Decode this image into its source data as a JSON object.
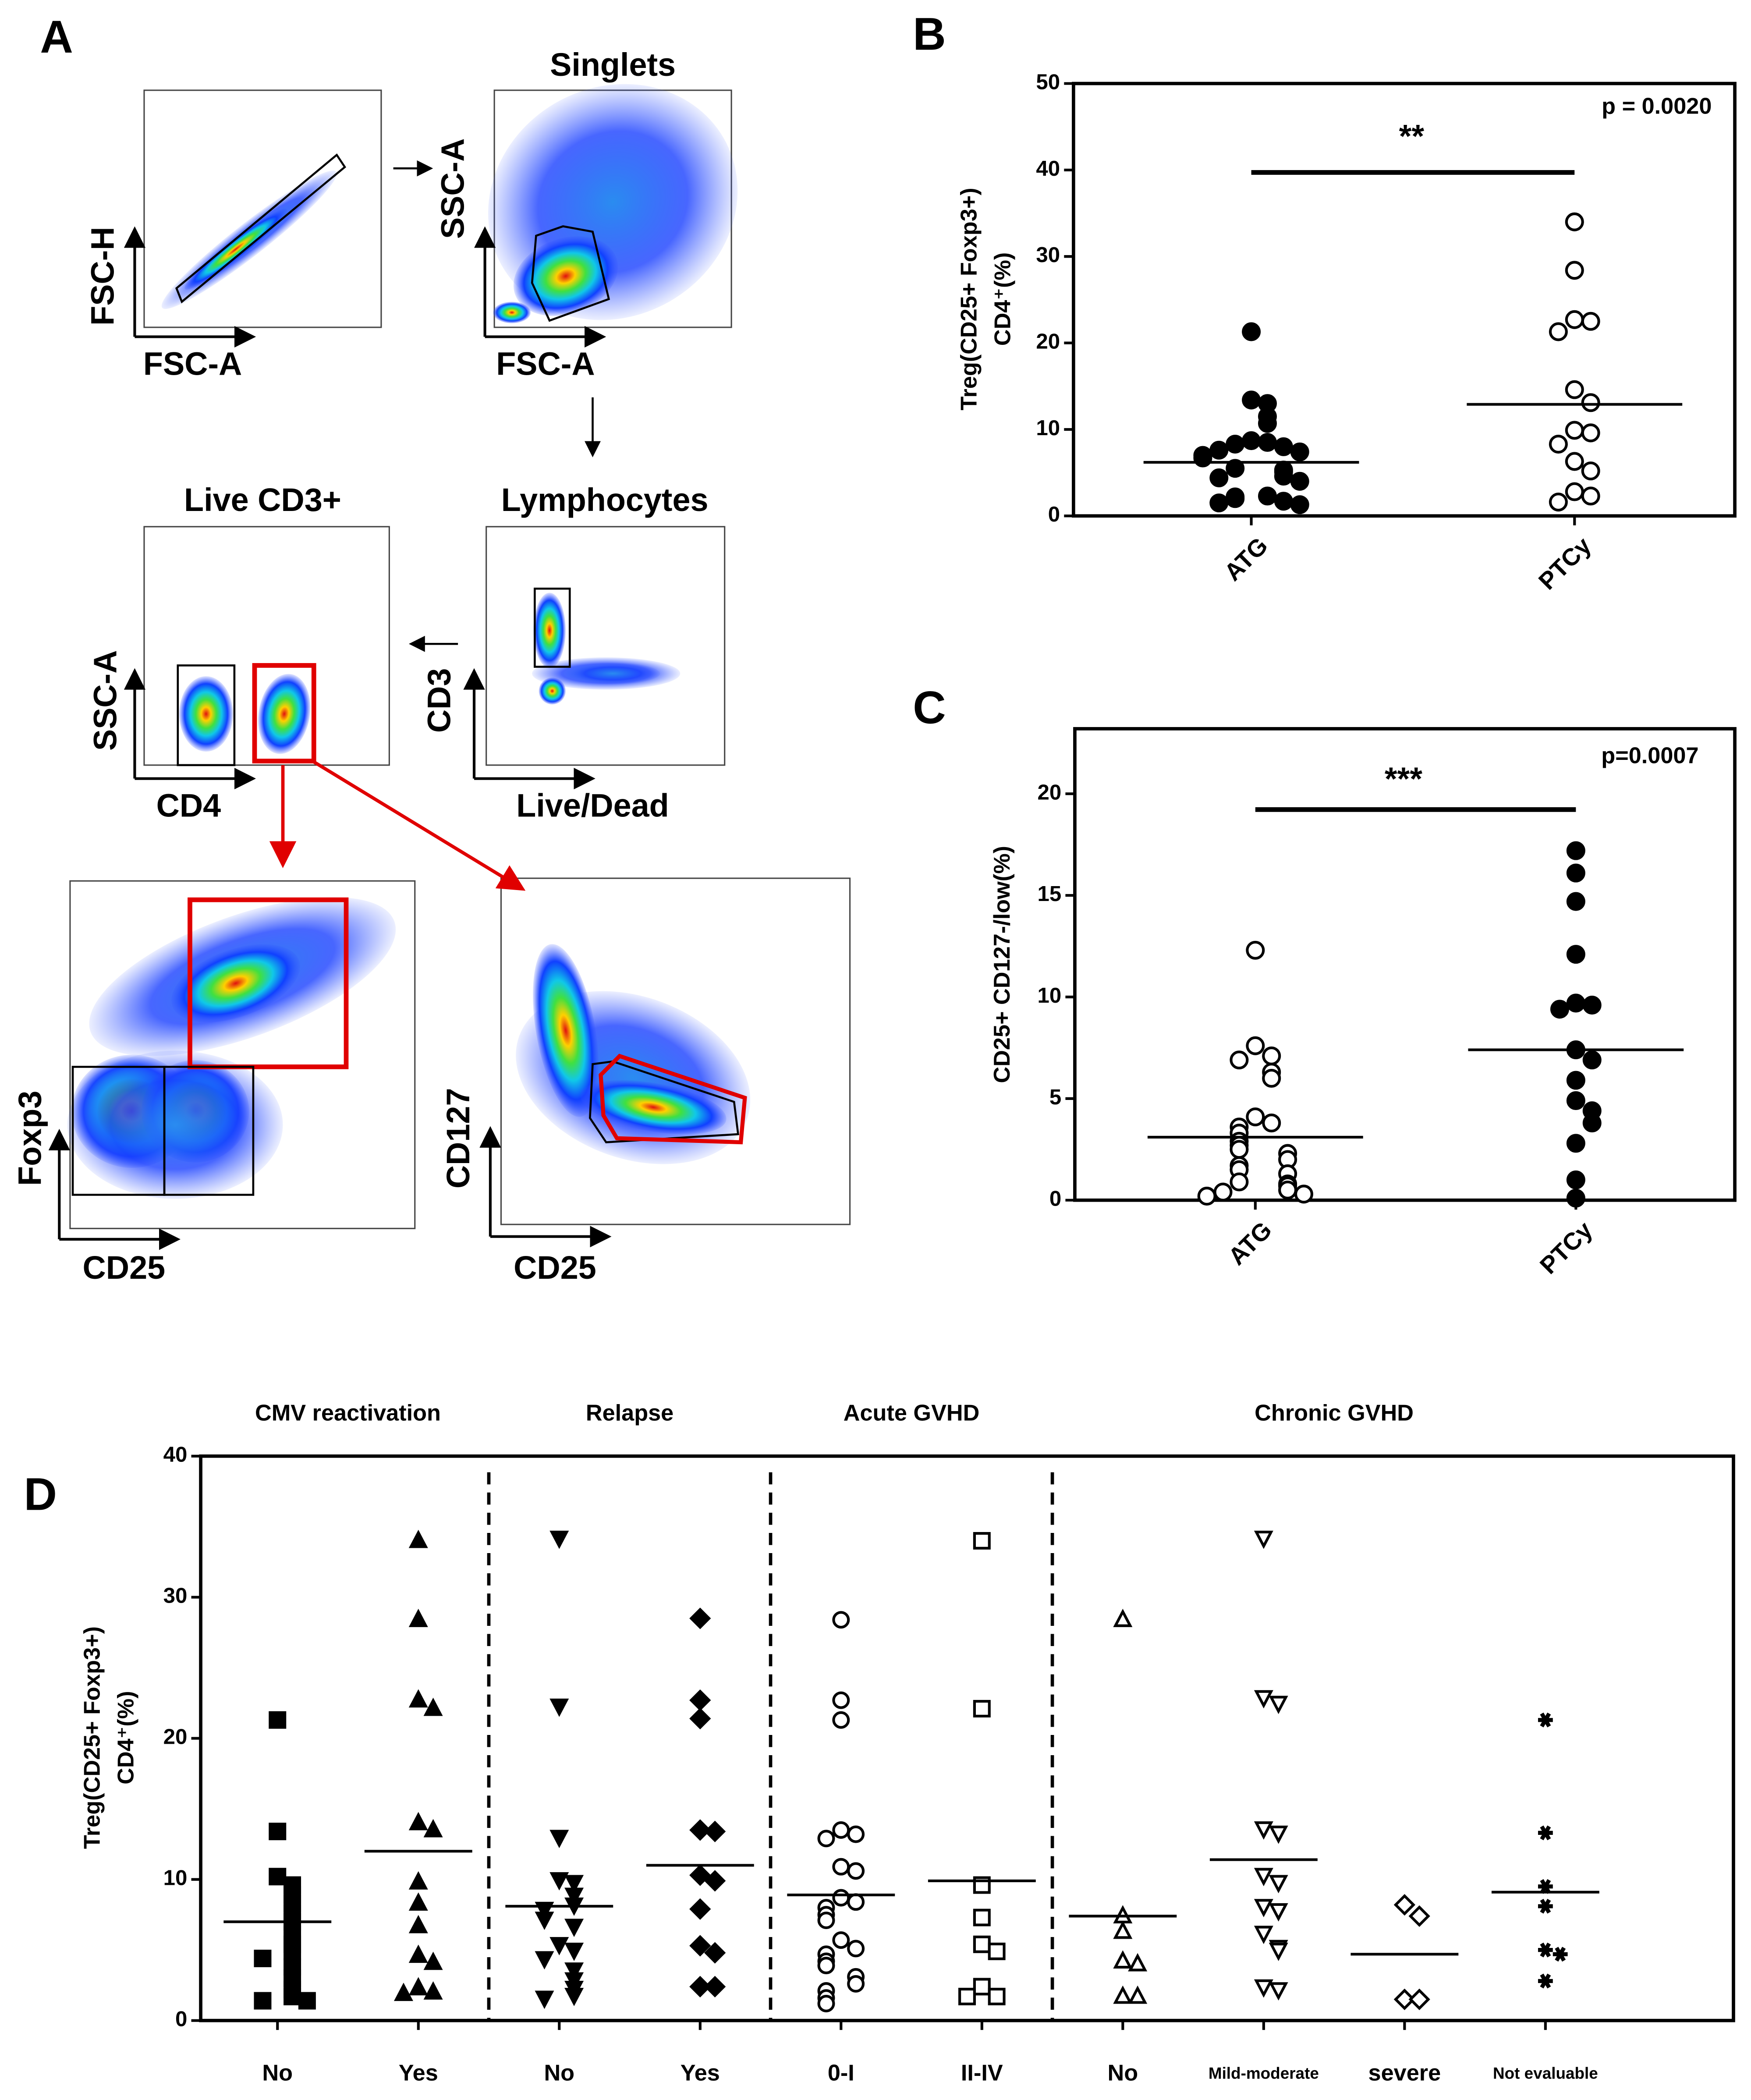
{
  "panel_a": {
    "label": "A",
    "plots": [
      {
        "x_axis": "FSC-A",
        "y_axis": "FSC-H"
      },
      {
        "title": "Singlets",
        "x_axis": "FSC-A",
        "y_axis": "SSC-A"
      },
      {
        "title": "Lymphocytes",
        "x_axis": "Live/Dead",
        "y_axis": "CD3"
      },
      {
        "title": "Live CD3+",
        "x_axis": "CD4",
        "y_axis": "SSC-A"
      },
      {
        "x_axis": "CD25",
        "y_axis": "Foxp3"
      },
      {
        "x_axis": "CD25",
        "y_axis": "CD127"
      }
    ]
  },
  "chart_data": [
    {
      "type": "dot",
      "label": "B",
      "ylabel": [
        "Treg(CD25+ Foxp3+)",
        "CD4⁺(%)"
      ],
      "categories": [
        "ATG",
        "PTCy"
      ],
      "values": [
        [
          21.3,
          13.4,
          13.0,
          11.5,
          10.7,
          8.7,
          8.5,
          8.3,
          8.0,
          7.6,
          7.4,
          7.0,
          6.7,
          5.5,
          5.3,
          5.1,
          4.6,
          4.4,
          4.0,
          2.3,
          2.2,
          2.0,
          1.7,
          1.5,
          1.3
        ],
        [
          34.0,
          28.4,
          22.7,
          22.5,
          21.3,
          14.6,
          13.1,
          9.9,
          9.6,
          8.3,
          6.3,
          5.2,
          2.8,
          2.3,
          1.6
        ]
      ],
      "means": [
        6.2,
        12.9
      ],
      "markers": [
        "circle-filled",
        "circle-open"
      ],
      "ylim": [
        0,
        50
      ],
      "yticks": [
        0,
        10,
        20,
        30,
        40,
        50
      ],
      "annotation": "**",
      "p_value": "p = 0.0020"
    },
    {
      "type": "dot",
      "label": "C",
      "ylabel": [
        "CD25+ CD127-/low(%)"
      ],
      "categories": [
        "ATG",
        "PTCy"
      ],
      "values": [
        [
          12.3,
          7.6,
          7.1,
          6.9,
          6.3,
          6.0,
          4.1,
          3.8,
          3.6,
          3.3,
          2.9,
          2.7,
          2.5,
          2.3,
          2.0,
          1.7,
          1.5,
          1.3,
          0.9,
          0.8,
          0.7,
          0.5,
          0.4,
          0.3,
          0.2
        ],
        [
          17.2,
          16.1,
          14.7,
          12.1,
          9.7,
          9.6,
          9.4,
          7.4,
          6.9,
          5.9,
          4.9,
          4.4,
          3.8,
          2.8,
          1.0,
          0.1
        ]
      ],
      "means": [
        3.1,
        7.4
      ],
      "markers": [
        "circle-open",
        "circle-filled"
      ],
      "ylim": [
        0,
        23.2
      ],
      "yticks": [
        0,
        5,
        10,
        15,
        20
      ],
      "annotation": "***",
      "p_value": "p=0.0007"
    },
    {
      "type": "grouped_dot",
      "label": "D",
      "ylabel": [
        "Treg(CD25+ Foxp3+)",
        "CD4⁺(%)"
      ],
      "ylim": [
        0,
        40
      ],
      "yticks": [
        0,
        10,
        20,
        30,
        40
      ],
      "groups": [
        {
          "name": "CMV reactivation",
          "categories": [
            "No",
            "Yes"
          ],
          "markers": [
            "square-filled",
            "triangle-filled"
          ],
          "means": [
            7.0,
            12.0
          ],
          "values": [
            [
              21.3,
              13.4,
              10.2,
              9.6,
              8.9,
              8.3,
              7.6,
              7.0,
              6.1,
              5.4,
              4.9,
              4.4,
              3.8,
              3.0,
              2.2,
              1.7,
              1.4,
              1.4
            ],
            [
              34.0,
              28.4,
              22.7,
              22.1,
              14.0,
              13.5,
              9.8,
              8.3,
              6.7,
              4.6,
              4.1,
              2.3,
              2.0,
              1.9
            ]
          ]
        },
        {
          "name": "Relapse",
          "categories": [
            "No",
            "Yes"
          ],
          "markers": [
            "triangle-down-filled",
            "diamond-filled"
          ],
          "means": [
            8.1,
            11.0
          ],
          "values": [
            [
              34.2,
              22.3,
              13.0,
              10.0,
              9.8,
              8.9,
              8.2,
              7.9,
              7.2,
              6.7,
              5.4,
              5.0,
              4.4,
              3.6,
              2.9,
              2.3,
              1.8,
              1.6
            ],
            [
              28.5,
              22.7,
              21.4,
              13.5,
              13.4,
              10.3,
              9.9,
              7.9,
              5.3,
              4.8,
              2.4,
              2.4
            ]
          ]
        },
        {
          "name": "Acute GVHD",
          "categories": [
            "0-I",
            "II-IV"
          ],
          "markers": [
            "circle-open",
            "square-open"
          ],
          "means": [
            8.9,
            9.9
          ],
          "values": [
            [
              28.4,
              22.7,
              21.3,
              13.5,
              13.2,
              12.9,
              10.9,
              10.6,
              8.7,
              8.4,
              8.0,
              7.5,
              7.1,
              5.7,
              5.1,
              4.7,
              4.2,
              3.9,
              3.1,
              2.6,
              2.1,
              1.6,
              1.2
            ],
            [
              34.0,
              22.1,
              9.6,
              7.3,
              5.4,
              4.9,
              2.4,
              1.7,
              1.7
            ]
          ]
        },
        {
          "name": "Chronic GVHD",
          "categories": [
            "No",
            "Mild-moderate",
            "severe",
            "Not evaluable"
          ],
          "markers": [
            "triangle-open",
            "triangle-down-open",
            "diamond-open",
            "asterisk"
          ],
          "means": [
            7.4,
            11.4,
            4.7,
            9.1
          ],
          "values": [
            [
              28.4,
              7.4,
              6.3,
              4.2,
              4.0,
              1.7,
              1.7
            ],
            [
              34.2,
              22.9,
              22.5,
              13.6,
              13.3,
              10.3,
              9.8,
              8.1,
              7.8,
              6.2,
              5.2,
              5.0,
              2.4,
              2.2
            ],
            [
              8.2,
              7.4,
              1.5,
              1.5
            ],
            [
              21.3,
              13.3,
              9.5,
              8.1,
              5.0,
              4.7,
              2.8
            ]
          ]
        }
      ]
    }
  ]
}
